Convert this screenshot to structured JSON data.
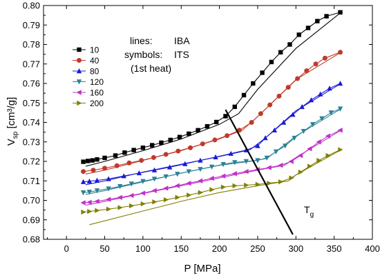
{
  "chart_data": {
    "type": "line",
    "xlabel": "P [MPa]",
    "ylabel": "V",
    "ylabel_sub": "sp",
    "ylabel_unit": " [cm³/g]",
    "xlim": [
      -30,
      400
    ],
    "ylim": [
      0.68,
      0.8
    ],
    "xticks": [
      0,
      50,
      100,
      150,
      200,
      250,
      300,
      350,
      400
    ],
    "yticks": [
      0.68,
      0.69,
      0.7,
      0.71,
      0.72,
      0.73,
      0.74,
      0.75,
      0.76,
      0.77,
      0.78,
      0.79,
      0.8
    ],
    "grid": false,
    "legend_position": "top-left",
    "annotations": {
      "lines_label": "lines:",
      "lines_value": "IBA",
      "symbols_label": "symbols:",
      "symbols_value": "ITS",
      "heat_note": "(1st heat)",
      "tg_label": "T",
      "tg_sub": "g"
    },
    "tg_line": {
      "x": [
        208,
        296
      ],
      "y": [
        0.7465,
        0.6825
      ]
    },
    "series": [
      {
        "name": "10",
        "color": "#000000",
        "marker": "square",
        "symbol_x": [
          22,
          28,
          34,
          40,
          50,
          64,
          76,
          88,
          100,
          112,
          124,
          136,
          148,
          160,
          172,
          184,
          196,
          208,
          220,
          232,
          244,
          256,
          268,
          280,
          292,
          304,
          316,
          328,
          340,
          358
        ],
        "symbol_y": [
          0.7198,
          0.7202,
          0.7205,
          0.721,
          0.7218,
          0.723,
          0.7245,
          0.7258,
          0.727,
          0.7283,
          0.7296,
          0.731,
          0.7325,
          0.7342,
          0.736,
          0.738,
          0.7402,
          0.7432,
          0.748,
          0.754,
          0.76,
          0.7655,
          0.771,
          0.776,
          0.78,
          0.785,
          0.7885,
          0.792,
          0.7945,
          0.7965
        ],
        "line_x": [
          25,
          50,
          100,
          150,
          200,
          225,
          250,
          300,
          359
        ],
        "line_y": [
          0.7175,
          0.72,
          0.7255,
          0.7315,
          0.739,
          0.7445,
          0.757,
          0.778,
          0.7965
        ]
      },
      {
        "name": "40",
        "color": "#c0392b",
        "marker": "circle",
        "symbol_x": [
          22,
          35,
          50,
          66,
          82,
          98,
          114,
          130,
          146,
          162,
          178,
          194,
          210,
          226,
          242,
          254,
          266,
          278,
          290,
          302,
          314,
          326,
          338,
          358
        ],
        "symbol_y": [
          0.7148,
          0.7155,
          0.7165,
          0.7178,
          0.7192,
          0.7205,
          0.722,
          0.7236,
          0.7253,
          0.727,
          0.729,
          0.731,
          0.7332,
          0.736,
          0.74,
          0.7445,
          0.749,
          0.7535,
          0.758,
          0.7625,
          0.7665,
          0.77,
          0.773,
          0.776
        ],
        "line_x": [
          25,
          50,
          100,
          150,
          200,
          230,
          250,
          300,
          359
        ],
        "line_y": [
          0.7135,
          0.7155,
          0.7205,
          0.7255,
          0.7315,
          0.736,
          0.743,
          0.762,
          0.776
        ]
      },
      {
        "name": "80",
        "color": "#1a1ad6",
        "marker": "triangle-up",
        "symbol_x": [
          22,
          30,
          40,
          55,
          75,
          95,
          115,
          135,
          155,
          175,
          195,
          215,
          235,
          250,
          260,
          272,
          284,
          296,
          308,
          320,
          332,
          344,
          358
        ],
        "symbol_y": [
          0.7095,
          0.7098,
          0.7102,
          0.711,
          0.7125,
          0.714,
          0.7155,
          0.717,
          0.7187,
          0.7205,
          0.7222,
          0.724,
          0.7258,
          0.728,
          0.732,
          0.736,
          0.74,
          0.744,
          0.748,
          0.7515,
          0.7545,
          0.7575,
          0.76
        ],
        "line_x": [
          25,
          50,
          100,
          150,
          200,
          240,
          260,
          300,
          359
        ],
        "line_y": [
          0.708,
          0.71,
          0.7145,
          0.7185,
          0.7225,
          0.726,
          0.732,
          0.746,
          0.76
        ]
      },
      {
        "name": "120",
        "color": "#2b8296",
        "marker": "triangle-down",
        "symbol_x": [
          22,
          30,
          40,
          55,
          70,
          85,
          100,
          115,
          130,
          145,
          160,
          175,
          190,
          205,
          220,
          235,
          250,
          262,
          274,
          286,
          298,
          310,
          322,
          334,
          346,
          358
        ],
        "symbol_y": [
          0.704,
          0.7043,
          0.705,
          0.706,
          0.7072,
          0.7085,
          0.7098,
          0.711,
          0.7122,
          0.7135,
          0.7148,
          0.716,
          0.7172,
          0.7185,
          0.7195,
          0.72,
          0.7205,
          0.7218,
          0.725,
          0.728,
          0.732,
          0.7355,
          0.739,
          0.742,
          0.745,
          0.747
        ],
        "line_x": [
          25,
          50,
          100,
          150,
          200,
          240,
          262,
          300,
          359
        ],
        "line_y": [
          0.703,
          0.705,
          0.7095,
          0.714,
          0.718,
          0.72,
          0.7215,
          0.733,
          0.747
        ]
      },
      {
        "name": "160",
        "color": "#c030c8",
        "marker": "triangle-left",
        "symbol_x": [
          22,
          30,
          40,
          55,
          70,
          85,
          100,
          115,
          130,
          145,
          160,
          175,
          190,
          205,
          220,
          235,
          250,
          265,
          280,
          294,
          306,
          318,
          330,
          342,
          358
        ],
        "symbol_y": [
          0.6988,
          0.699,
          0.6995,
          0.7005,
          0.7015,
          0.7025,
          0.7037,
          0.705,
          0.7062,
          0.7075,
          0.7088,
          0.71,
          0.7113,
          0.7125,
          0.7137,
          0.7148,
          0.7158,
          0.7168,
          0.718,
          0.72,
          0.723,
          0.7265,
          0.73,
          0.733,
          0.736
        ],
        "line_x": [
          25,
          50,
          100,
          150,
          200,
          250,
          285,
          300,
          359
        ],
        "line_y": [
          0.6975,
          0.6995,
          0.7035,
          0.7075,
          0.7115,
          0.7155,
          0.718,
          0.722,
          0.736
        ]
      },
      {
        "name": "200",
        "color": "#808000",
        "marker": "triangle-right",
        "symbol_x": [
          22,
          30,
          40,
          55,
          70,
          85,
          100,
          115,
          130,
          145,
          160,
          175,
          190,
          205,
          220,
          235,
          250,
          265,
          280,
          294,
          306,
          318,
          330,
          342,
          358
        ],
        "symbol_y": [
          0.694,
          0.6943,
          0.6948,
          0.6955,
          0.6963,
          0.6972,
          0.6982,
          0.6992,
          0.7003,
          0.7015,
          0.7027,
          0.704,
          0.7055,
          0.7068,
          0.7075,
          0.7078,
          0.7082,
          0.7088,
          0.7095,
          0.7115,
          0.7145,
          0.7175,
          0.7205,
          0.723,
          0.726
        ],
        "line_x": [
          30,
          50,
          100,
          150,
          200,
          250,
          290,
          300,
          359
        ],
        "line_y": [
          0.6875,
          0.6895,
          0.6945,
          0.6995,
          0.704,
          0.7075,
          0.71,
          0.713,
          0.726
        ]
      }
    ]
  }
}
